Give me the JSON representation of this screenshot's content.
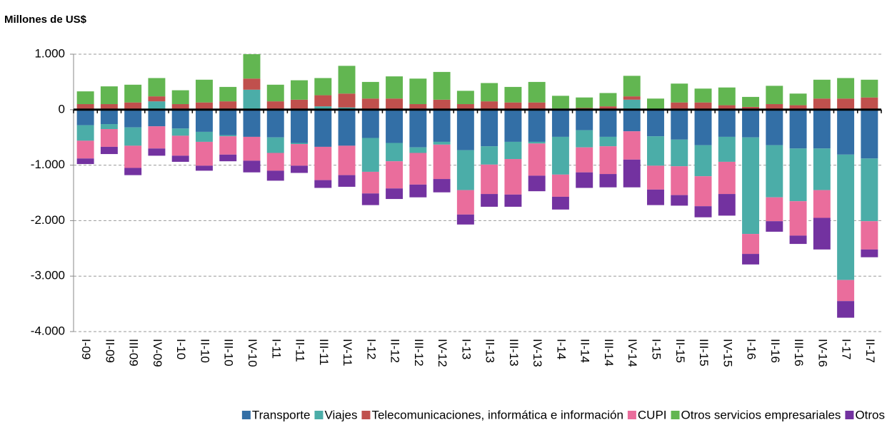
{
  "chart_data": {
    "type": "stacked-bar",
    "y_label": "Millones de US$",
    "categories": [
      "I-09",
      "II-09",
      "III-09",
      "IV-09",
      "I-10",
      "II-10",
      "III-10",
      "IV-10",
      "I-11",
      "II-11",
      "III-11",
      "IV-11",
      "I-12",
      "II-12",
      "III-12",
      "IV-12",
      "I-13",
      "II-13",
      "III-13",
      "IV-13",
      "I-14",
      "II-14",
      "III-14",
      "IV-14",
      "I-15",
      "II-15",
      "III-15",
      "IV-15",
      "I-16",
      "II-16",
      "III-16",
      "IV-16",
      "I-17",
      "II-17"
    ],
    "series": [
      {
        "name": "Transporte",
        "color": "#336fa6",
        "values": [
          -280,
          -260,
          -320,
          -300,
          -340,
          -400,
          -460,
          -490,
          -500,
          -600,
          -670,
          -650,
          -510,
          -600,
          -680,
          -580,
          -730,
          -660,
          -580,
          -580,
          -490,
          -370,
          -490,
          -390,
          -480,
          -540,
          -640,
          -490,
          -500,
          -640,
          -700,
          -700,
          -810,
          -880
        ]
      },
      {
        "name": "Viajes",
        "color": "#4bada8",
        "values": [
          -280,
          -90,
          -330,
          150,
          -130,
          -180,
          -20,
          360,
          -280,
          -20,
          60,
          40,
          -610,
          -330,
          -100,
          -50,
          -720,
          -330,
          -310,
          -30,
          -680,
          -310,
          -170,
          180,
          -530,
          -480,
          -560,
          -450,
          -1740,
          -940,
          -950,
          -750,
          -2260,
          -1130
        ]
      },
      {
        "name": "Telecomunicaciones, informática e información",
        "color": "#c0504d",
        "values": [
          100,
          100,
          130,
          90,
          100,
          130,
          150,
          200,
          150,
          180,
          200,
          250,
          200,
          200,
          100,
          180,
          100,
          150,
          130,
          130,
          20,
          30,
          60,
          60,
          0,
          130,
          130,
          80,
          50,
          100,
          80,
          200,
          200,
          220
        ]
      },
      {
        "name": "CUPI",
        "color": "#ea6d9c",
        "values": [
          -320,
          -320,
          -400,
          -400,
          -360,
          -430,
          -330,
          -430,
          -320,
          -390,
          -600,
          -530,
          -390,
          -490,
          -570,
          -620,
          -440,
          -530,
          -640,
          -580,
          -400,
          -450,
          -500,
          -510,
          -430,
          -520,
          -540,
          -580,
          -360,
          -430,
          -620,
          -500,
          -380,
          -510
        ]
      },
      {
        "name": "Otros servicios empresariales",
        "color": "#62b651",
        "values": [
          230,
          320,
          320,
          330,
          250,
          410,
          260,
          440,
          300,
          350,
          310,
          500,
          300,
          400,
          460,
          500,
          240,
          330,
          280,
          370,
          230,
          190,
          240,
          370,
          200,
          340,
          250,
          320,
          180,
          330,
          210,
          340,
          370,
          320
        ]
      },
      {
        "name": "Otros",
        "color": "#7332a0",
        "values": [
          -100,
          -130,
          -130,
          -130,
          -110,
          -90,
          -120,
          -210,
          -180,
          -130,
          -140,
          -210,
          -210,
          -190,
          -230,
          -240,
          -180,
          -230,
          -220,
          -280,
          -230,
          -280,
          -240,
          -500,
          -280,
          -190,
          -200,
          -390,
          -190,
          -190,
          -150,
          -570,
          -300,
          -140
        ]
      }
    ],
    "ylim": [
      -4000,
      1000
    ],
    "yticks": [
      {
        "value": -4000,
        "label": "-4.000"
      },
      {
        "value": -3000,
        "label": "-3.000"
      },
      {
        "value": -2000,
        "label": "-2.000"
      },
      {
        "value": -1000,
        "label": "-1.000"
      },
      0,
      {
        "value": 1000,
        "label": "1.000"
      }
    ],
    "grid": true
  }
}
